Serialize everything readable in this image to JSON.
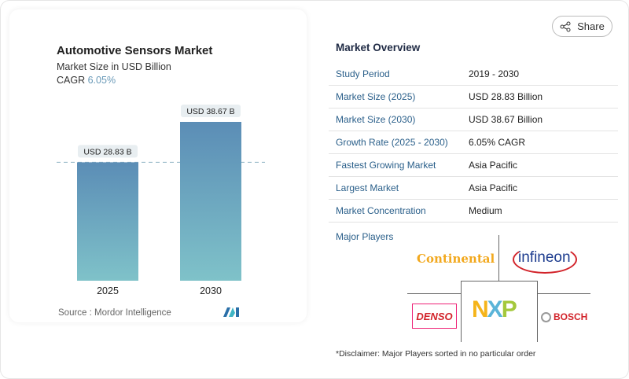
{
  "share_label": "Share",
  "chart_data": {
    "type": "bar",
    "title": "Automotive Sensors Market",
    "subtitle": "Market Size in USD Billion",
    "cagr_label": "CAGR",
    "cagr_value": "6.05%",
    "categories": [
      "2025",
      "2030"
    ],
    "values": [
      28.83,
      38.67
    ],
    "data_labels": [
      "USD 28.83 B",
      "USD 38.67 B"
    ],
    "ylim": [
      0,
      38.67
    ],
    "reference_line": 28.83,
    "colors": {
      "bar_top": "#5b8db6",
      "bar_bottom": "#7fc2c9",
      "cagr": "#6a9ab8"
    },
    "source": "Source :  Mordor Intelligence"
  },
  "overview": {
    "title": "Market Overview",
    "rows": [
      {
        "k": "Study Period",
        "v": "2019 - 2030"
      },
      {
        "k": "Market Size (2025)",
        "v": "USD 28.83 Billion"
      },
      {
        "k": "Market Size (2030)",
        "v": "USD 38.67 Billion"
      },
      {
        "k": "Growth Rate (2025 - 2030)",
        "v": "6.05% CAGR"
      },
      {
        "k": "Fastest Growing Market",
        "v": "Asia Pacific"
      },
      {
        "k": "Largest Market",
        "v": "Asia Pacific"
      },
      {
        "k": "Market Concentration",
        "v": "Medium"
      }
    ],
    "major_players_label": "Major Players",
    "players": [
      "Continental",
      "Infineon",
      "DENSO",
      "NXP",
      "BOSCH"
    ],
    "disclaimer": "*Disclaimer: Major Players sorted in no particular order"
  }
}
